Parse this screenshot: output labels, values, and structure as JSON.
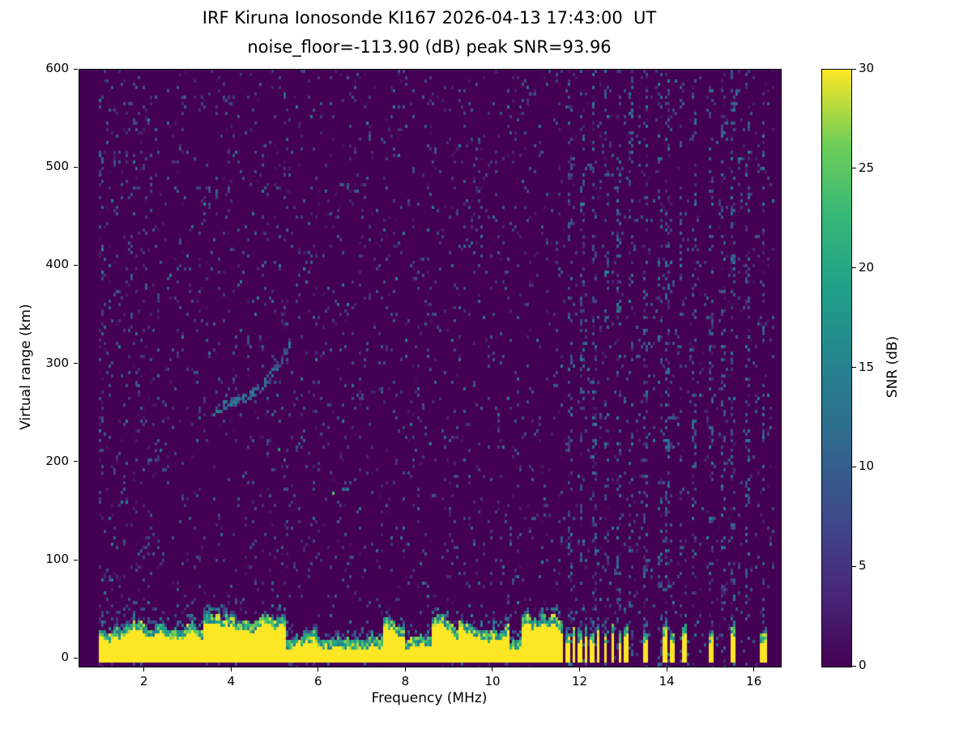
{
  "chart_data": {
    "type": "heatmap",
    "title_line1": "IRF Kiruna Ionosonde KI167 2026-04-13 17:43:00  UT",
    "title_line2": "noise_floor=-113.90 (dB) peak SNR=93.96",
    "station": "KI167",
    "timestamp_ut": "2026-04-13 17:43:00",
    "noise_floor_db": -113.9,
    "peak_snr_db": 93.96,
    "xlabel": "Frequency (MHz)",
    "ylabel": "Virtual range (km)",
    "xlim": [
      0.5,
      16.6
    ],
    "ylim": [
      -8,
      600
    ],
    "xticks": [
      2,
      4,
      6,
      8,
      10,
      12,
      14,
      16
    ],
    "yticks": [
      0,
      100,
      200,
      300,
      400,
      500,
      600
    ],
    "data_freq_range": [
      0.95,
      16.45
    ],
    "colorbar": {
      "label": "SNR (dB)",
      "ticks": [
        0,
        5,
        10,
        15,
        20,
        25,
        30
      ],
      "vmin": 0,
      "vmax": 30,
      "colormap": "viridis",
      "colormap_stops": [
        [
          0.0,
          "#440154"
        ],
        [
          0.125,
          "#482878"
        ],
        [
          0.25,
          "#3e4a89"
        ],
        [
          0.375,
          "#31688e"
        ],
        [
          0.5,
          "#26828e"
        ],
        [
          0.625,
          "#1f9e89"
        ],
        [
          0.75,
          "#35b779"
        ],
        [
          0.875,
          "#6ece58"
        ],
        [
          1.0,
          "#fde725"
        ]
      ]
    },
    "features": {
      "background_noise": {
        "speckle_density": 0.055,
        "speckle_snr_max_db": 10
      },
      "ground_clutter_band": {
        "freq_start": 0.95,
        "freq_end_continuous": 11.62,
        "base_km": -3,
        "top_km_mean": 30,
        "top_km_variation": 12,
        "snr_db": 30
      },
      "band_stripes": [
        [
          11.72,
          0.06
        ],
        [
          11.85,
          0.05
        ],
        [
          11.98,
          0.06
        ],
        [
          12.12,
          0.05
        ],
        [
          12.26,
          0.06
        ],
        [
          12.42,
          0.05
        ],
        [
          12.58,
          0.06
        ],
        [
          12.74,
          0.05
        ],
        [
          12.9,
          0.06
        ],
        [
          13.05,
          0.05
        ],
        [
          13.5,
          0.07
        ],
        [
          13.95,
          0.08
        ],
        [
          14.1,
          0.05
        ],
        [
          14.38,
          0.06
        ],
        [
          15.0,
          0.08
        ],
        [
          15.5,
          0.1
        ],
        [
          16.2,
          0.09
        ]
      ],
      "echo_trace": {
        "points_mhz_km": [
          [
            3.55,
            252
          ],
          [
            3.8,
            257
          ],
          [
            4.05,
            262
          ],
          [
            4.3,
            266
          ],
          [
            4.55,
            272
          ],
          [
            4.75,
            280
          ],
          [
            4.95,
            291
          ],
          [
            5.1,
            301
          ],
          [
            5.25,
            313
          ],
          [
            5.35,
            323
          ]
        ],
        "snr_db_range": [
          6,
          15
        ]
      },
      "interference_columns": [
        [
          1.0,
          0.35
        ],
        [
          5.25,
          0.3
        ],
        [
          11.78,
          0.6
        ],
        [
          12.05,
          0.55
        ],
        [
          12.32,
          0.6
        ],
        [
          12.6,
          0.55
        ],
        [
          12.88,
          0.6
        ],
        [
          13.15,
          0.5
        ],
        [
          13.5,
          0.65
        ],
        [
          13.82,
          0.5
        ],
        [
          14.0,
          0.7
        ],
        [
          14.3,
          0.55
        ],
        [
          14.62,
          0.5
        ],
        [
          15.0,
          0.7
        ],
        [
          15.28,
          0.5
        ],
        [
          15.52,
          0.75
        ],
        [
          15.85,
          0.5
        ],
        [
          16.2,
          0.7
        ]
      ],
      "hot_spots": [
        [
          5.05,
          215,
          18
        ],
        [
          6.3,
          170,
          24
        ],
        [
          11.1,
          100,
          16
        ]
      ]
    }
  }
}
